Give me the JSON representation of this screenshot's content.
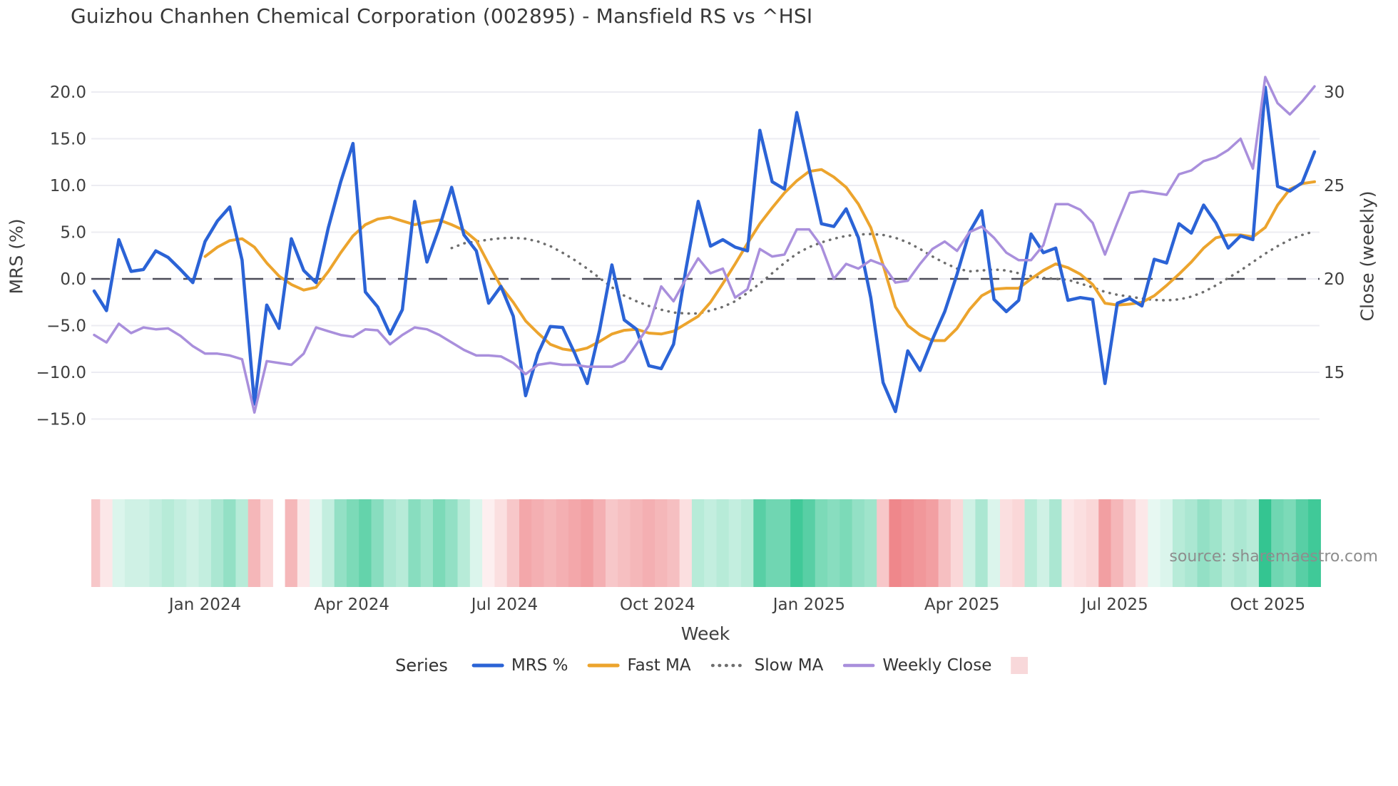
{
  "title": "Guizhou Chanhen Chemical Corporation (002895) - Mansfield RS vs ^HSI",
  "source_note": "source: sharemaestro.com",
  "axes": {
    "left": {
      "title": "MRS (%)",
      "ticks": [
        {
          "label": "20.0",
          "value": 20
        },
        {
          "label": "15.0",
          "value": 15
        },
        {
          "label": "10.0",
          "value": 10
        },
        {
          "label": "5.0",
          "value": 5
        },
        {
          "label": "0.0",
          "value": 0
        },
        {
          "label": "−5.0",
          "value": -5
        },
        {
          "label": "−10.0",
          "value": -10
        },
        {
          "label": "−15.0",
          "value": -15
        }
      ]
    },
    "right": {
      "title": "Close (weekly)",
      "ticks": [
        {
          "label": "30",
          "value": 30
        },
        {
          "label": "25",
          "value": 25
        },
        {
          "label": "20",
          "value": 20
        },
        {
          "label": "15",
          "value": 15
        }
      ]
    },
    "x": {
      "title": "Week",
      "month_ticks": [
        {
          "label": "Jan 2024",
          "week": 9.0
        },
        {
          "label": "Apr 2024",
          "week": 20.9
        },
        {
          "label": "Jul 2024",
          "week": 33.3
        },
        {
          "label": "Oct 2024",
          "week": 45.7
        },
        {
          "label": "Jan 2025",
          "week": 58.0
        },
        {
          "label": "Apr 2025",
          "week": 70.4
        },
        {
          "label": "Jul 2025",
          "week": 82.8
        },
        {
          "label": "Oct 2025",
          "week": 95.2
        }
      ]
    }
  },
  "legend": {
    "title": "Series",
    "items": [
      {
        "label": "MRS %",
        "color": "#2b63d6",
        "style": "solid"
      },
      {
        "label": "Fast MA",
        "color": "#eca42d",
        "style": "solid"
      },
      {
        "label": "Slow MA",
        "color": "#6e6e6e",
        "style": "dotted"
      },
      {
        "label": "Weekly Close",
        "color": "#a98fdc",
        "style": "solid"
      }
    ],
    "swatch_color": "#f8d8da"
  },
  "colors": {
    "grid": "#ececf2",
    "zero_line": "#4c4c58",
    "tick_text": "#3f3f3f",
    "heat_green": "#16bb7e",
    "heat_red": "#e95f64"
  },
  "chart_data": {
    "type": "line",
    "x_unit": "week_index",
    "n_points": 100,
    "ylim_left": [
      -15,
      20
    ],
    "ylim_right": [
      15,
      30
    ],
    "grid": "horizontal-only",
    "zero_reference_line": 0,
    "series": [
      {
        "name": "MRS %",
        "axis": "left",
        "color": "#2b63d6",
        "style": "solid",
        "width": 4.5,
        "values": [
          -1.3,
          -3.4,
          4.2,
          0.8,
          1.0,
          3.0,
          2.3,
          1.0,
          -0.4,
          4.0,
          6.2,
          7.7,
          2.0,
          -13.4,
          -2.8,
          -5.3,
          4.3,
          0.9,
          -0.4,
          5.5,
          10.4,
          14.5,
          -1.4,
          -3.0,
          -5.9,
          -3.3,
          8.3,
          1.8,
          5.5,
          9.8,
          4.7,
          3.0,
          -2.6,
          -0.8,
          -4.0,
          -12.5,
          -8.0,
          -5.1,
          -5.2,
          -8.0,
          -11.2,
          -5.5,
          1.5,
          -4.4,
          -5.4,
          -9.3,
          -9.6,
          -7.0,
          1.0,
          8.3,
          3.5,
          4.2,
          3.4,
          3.0,
          15.9,
          10.4,
          9.6,
          17.8,
          11.8,
          5.9,
          5.6,
          7.5,
          4.4,
          -2.0,
          -11.1,
          -14.2,
          -7.7,
          -9.8,
          -6.5,
          -3.5,
          0.5,
          5.0,
          7.3,
          -2.2,
          -3.5,
          -2.3,
          4.8,
          2.8,
          3.3,
          -2.3,
          -2.0,
          -2.2,
          -11.2,
          -2.6,
          -2.1,
          -2.9,
          2.1,
          1.7,
          5.9,
          4.9,
          7.9,
          6.0,
          3.3,
          4.6,
          4.2,
          20.5,
          9.9,
          9.4,
          10.3,
          13.6
        ]
      },
      {
        "name": "Fast MA",
        "axis": "left",
        "color": "#eca42d",
        "style": "solid",
        "width": 4,
        "values": [
          null,
          null,
          null,
          null,
          null,
          null,
          null,
          null,
          null,
          2.4,
          3.4,
          4.1,
          4.3,
          3.4,
          1.7,
          0.3,
          -0.6,
          -1.2,
          -0.9,
          0.8,
          2.8,
          4.6,
          5.8,
          6.4,
          6.6,
          6.2,
          5.8,
          6.1,
          6.3,
          5.8,
          5.2,
          4.1,
          1.6,
          -0.8,
          -2.5,
          -4.5,
          -5.8,
          -7.0,
          -7.5,
          -7.7,
          -7.4,
          -6.7,
          -5.9,
          -5.5,
          -5.4,
          -5.8,
          -5.9,
          -5.6,
          -4.8,
          -4.0,
          -2.5,
          -0.5,
          1.6,
          3.8,
          5.9,
          7.6,
          9.2,
          10.5,
          11.5,
          11.7,
          10.9,
          9.8,
          8.0,
          5.5,
          1.5,
          -3.0,
          -5.0,
          -6.0,
          -6.6,
          -6.6,
          -5.3,
          -3.3,
          -1.8,
          -1.1,
          -1.0,
          -1.0,
          0.0,
          0.9,
          1.6,
          1.2,
          0.5,
          -0.6,
          -2.6,
          -2.8,
          -2.7,
          -2.5,
          -1.8,
          -0.7,
          0.5,
          1.8,
          3.3,
          4.4,
          4.7,
          4.7,
          4.5,
          5.5,
          7.9,
          9.6,
          10.2,
          10.4
        ]
      },
      {
        "name": "Slow MA",
        "axis": "left",
        "color": "#6e6e6e",
        "style": "dotted",
        "width": 3.5,
        "values": [
          null,
          null,
          null,
          null,
          null,
          null,
          null,
          null,
          null,
          null,
          null,
          null,
          null,
          null,
          null,
          null,
          null,
          null,
          null,
          null,
          null,
          null,
          null,
          null,
          null,
          null,
          null,
          null,
          null,
          3.3,
          3.8,
          4.0,
          4.2,
          4.35,
          4.4,
          4.3,
          4.0,
          3.5,
          2.8,
          2.0,
          1.1,
          0.1,
          -0.9,
          -1.8,
          -2.4,
          -2.9,
          -3.3,
          -3.6,
          -3.7,
          -3.7,
          -3.4,
          -3.0,
          -2.4,
          -1.5,
          -0.5,
          0.6,
          1.7,
          2.7,
          3.4,
          3.9,
          4.3,
          4.6,
          4.75,
          4.8,
          4.7,
          4.4,
          3.9,
          3.2,
          2.4,
          1.7,
          1.1,
          0.8,
          0.9,
          1.0,
          0.9,
          0.6,
          0.3,
          0.1,
          0.0,
          -0.1,
          -0.5,
          -0.9,
          -1.4,
          -1.7,
          -1.9,
          -2.1,
          -2.25,
          -2.3,
          -2.2,
          -1.9,
          -1.4,
          -0.7,
          0.1,
          0.9,
          1.8,
          2.7,
          3.5,
          4.2,
          4.7,
          5.1
        ]
      },
      {
        "name": "Weekly Close",
        "axis": "right",
        "color": "#a98fdc",
        "style": "solid",
        "width": 3.5,
        "values": [
          17.0,
          16.6,
          17.6,
          17.1,
          17.4,
          17.3,
          17.35,
          16.95,
          16.4,
          16.0,
          16.0,
          15.9,
          15.7,
          12.85,
          15.6,
          15.5,
          15.4,
          16.0,
          17.4,
          17.2,
          17.0,
          16.9,
          17.3,
          17.25,
          16.5,
          17.0,
          17.4,
          17.3,
          17.0,
          16.6,
          16.2,
          15.9,
          15.9,
          15.85,
          15.5,
          14.9,
          15.4,
          15.5,
          15.4,
          15.4,
          15.3,
          15.3,
          15.3,
          15.6,
          16.5,
          17.5,
          19.6,
          18.8,
          20.0,
          21.1,
          20.3,
          20.55,
          19.0,
          19.45,
          21.6,
          21.2,
          21.3,
          22.65,
          22.65,
          21.75,
          20.0,
          20.8,
          20.55,
          21.0,
          20.75,
          19.8,
          19.9,
          20.8,
          21.6,
          22.0,
          21.5,
          22.5,
          22.8,
          22.2,
          21.4,
          21.0,
          21.0,
          21.8,
          24.0,
          24.0,
          23.7,
          23.0,
          21.3,
          23.0,
          24.6,
          24.7,
          24.6,
          24.5,
          25.6,
          25.8,
          26.3,
          26.5,
          26.9,
          27.5,
          25.9,
          30.8,
          29.4,
          28.8,
          29.5,
          30.3
        ]
      }
    ],
    "heatmap_strip": {
      "description": "weekly red/green intensity band under chart, -1 deep red to +1 deep green, null = gap",
      "values": [
        -0.35,
        -0.15,
        0.15,
        0.2,
        0.2,
        0.25,
        0.3,
        0.25,
        0.2,
        0.25,
        0.35,
        0.45,
        0.3,
        -0.45,
        -0.25,
        null,
        -0.45,
        -0.15,
        0.12,
        0.25,
        0.45,
        0.55,
        0.65,
        0.5,
        0.35,
        0.3,
        0.5,
        0.4,
        0.55,
        0.45,
        0.3,
        0.15,
        -0.1,
        -0.2,
        -0.35,
        -0.55,
        -0.5,
        -0.45,
        -0.5,
        -0.55,
        -0.6,
        -0.5,
        -0.35,
        -0.4,
        -0.45,
        -0.5,
        -0.45,
        -0.4,
        -0.2,
        0.3,
        0.25,
        0.3,
        0.25,
        0.3,
        0.7,
        0.6,
        0.6,
        0.8,
        0.7,
        0.55,
        0.5,
        0.55,
        0.45,
        0.4,
        -0.35,
        -0.75,
        -0.7,
        -0.65,
        -0.6,
        -0.4,
        -0.25,
        0.2,
        0.35,
        0.15,
        -0.2,
        -0.25,
        0.3,
        0.2,
        0.35,
        -0.15,
        -0.2,
        -0.25,
        -0.6,
        -0.45,
        -0.3,
        -0.15,
        0.1,
        0.15,
        0.3,
        0.35,
        0.45,
        0.4,
        0.3,
        0.35,
        0.3,
        0.85,
        0.6,
        0.55,
        0.7,
        0.8
      ]
    }
  }
}
